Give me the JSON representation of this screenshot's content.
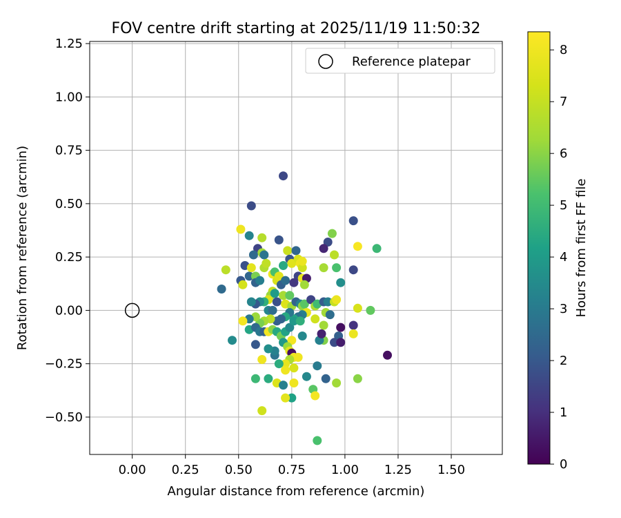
{
  "chart_data": {
    "type": "scatter",
    "title": "FOV centre drift starting at 2025/11/19 11:50:32",
    "xlabel": "Angular distance from reference (arcmin)",
    "ylabel": "Rotation from reference (arcmin)",
    "xlim": [
      -0.2,
      1.74
    ],
    "ylim": [
      -0.675,
      1.26
    ],
    "xticks": [
      "0.00",
      "0.25",
      "0.50",
      "0.75",
      "1.00",
      "1.25",
      "1.50"
    ],
    "yticks": [
      "−0.50",
      "−0.25",
      "0.00",
      "0.25",
      "0.50",
      "0.75",
      "1.00",
      "1.25"
    ],
    "grid": true,
    "legend": {
      "label": "Reference platepar",
      "position": "top-right"
    },
    "reference_point": {
      "x": 0.0,
      "y": 0.0
    },
    "colorbar": {
      "label": "Hours from first FF file",
      "range": [
        0,
        8.35
      ],
      "ticks": [
        "0",
        "1",
        "2",
        "3",
        "4",
        "5",
        "6",
        "7",
        "8"
      ],
      "colormap": "viridis"
    },
    "points": [
      [
        0.71,
        0.63,
        1.6
      ],
      [
        0.56,
        0.49,
        1.7
      ],
      [
        1.04,
        0.42,
        1.8
      ],
      [
        0.51,
        0.38,
        8.0
      ],
      [
        0.61,
        0.34,
        6.7
      ],
      [
        0.55,
        0.35,
        3.3
      ],
      [
        0.69,
        0.33,
        1.9
      ],
      [
        0.59,
        0.29,
        1.5
      ],
      [
        0.61,
        0.27,
        6.3
      ],
      [
        0.62,
        0.26,
        2.8
      ],
      [
        0.57,
        0.26,
        2.5
      ],
      [
        0.53,
        0.21,
        1.8
      ],
      [
        0.44,
        0.19,
        6.8
      ],
      [
        0.42,
        0.1,
        2.5
      ],
      [
        0.51,
        0.14,
        2.0
      ],
      [
        0.52,
        0.12,
        7.3
      ],
      [
        0.55,
        0.16,
        2.4
      ],
      [
        0.56,
        0.2,
        7.7
      ],
      [
        0.58,
        0.16,
        5.8
      ],
      [
        0.58,
        0.13,
        2.3
      ],
      [
        0.6,
        0.14,
        3.1
      ],
      [
        0.62,
        0.2,
        6.6
      ],
      [
        0.63,
        0.22,
        6.9
      ],
      [
        0.66,
        0.17,
        8.0
      ],
      [
        0.67,
        0.18,
        5.2
      ],
      [
        0.68,
        0.14,
        7.4
      ],
      [
        0.69,
        0.16,
        7.6
      ],
      [
        0.7,
        0.12,
        2.2
      ],
      [
        0.72,
        0.14,
        2.6
      ],
      [
        0.73,
        0.28,
        7.1
      ],
      [
        0.74,
        0.24,
        1.9
      ],
      [
        0.75,
        0.22,
        7.6
      ],
      [
        0.77,
        0.28,
        2.4
      ],
      [
        0.78,
        0.24,
        7.4
      ],
      [
        0.79,
        0.22,
        8.0
      ],
      [
        0.8,
        0.2,
        7.2
      ],
      [
        0.78,
        0.16,
        1.5
      ],
      [
        0.8,
        0.15,
        7.9
      ],
      [
        0.82,
        0.15,
        0.6
      ],
      [
        0.76,
        0.13,
        1.2
      ],
      [
        0.81,
        0.12,
        6.3
      ],
      [
        0.71,
        0.21,
        4.4
      ],
      [
        0.66,
        0.09,
        7.0
      ],
      [
        0.65,
        0.07,
        6.2
      ],
      [
        0.67,
        0.08,
        4.0
      ],
      [
        0.71,
        0.07,
        6.4
      ],
      [
        0.74,
        0.07,
        5.5
      ],
      [
        0.64,
        0.05,
        7.5
      ],
      [
        0.62,
        0.04,
        4.6
      ],
      [
        0.6,
        0.04,
        3.5
      ],
      [
        0.58,
        0.03,
        2.0
      ],
      [
        0.56,
        0.04,
        3.3
      ],
      [
        0.64,
        0.0,
        3.3
      ],
      [
        0.66,
        0.0,
        2.6
      ],
      [
        0.68,
        0.04,
        1.8
      ],
      [
        0.72,
        0.03,
        7.5
      ],
      [
        0.75,
        0.02,
        6.3
      ],
      [
        0.77,
        0.04,
        2.3
      ],
      [
        0.79,
        0.03,
        3.2
      ],
      [
        0.8,
        0.02,
        6.1
      ],
      [
        0.81,
        0.03,
        5.4
      ],
      [
        0.84,
        0.05,
        1.5
      ],
      [
        0.86,
        0.02,
        6.5
      ],
      [
        0.87,
        0.03,
        5.0
      ],
      [
        0.9,
        0.04,
        2.1
      ],
      [
        0.92,
        0.04,
        3.1
      ],
      [
        0.95,
        0.04,
        7.0
      ],
      [
        0.96,
        0.05,
        7.9
      ],
      [
        1.06,
        0.01,
        7.4
      ],
      [
        1.12,
        0.0,
        5.5
      ],
      [
        0.91,
        -0.01,
        6.3
      ],
      [
        0.93,
        -0.02,
        2.6
      ],
      [
        0.82,
        -0.01,
        7.8
      ],
      [
        0.8,
        -0.02,
        3.1
      ],
      [
        0.78,
        -0.03,
        2.7
      ],
      [
        0.76,
        -0.04,
        4.3
      ],
      [
        0.74,
        -0.01,
        2.9
      ],
      [
        0.72,
        -0.03,
        4.4
      ],
      [
        0.7,
        -0.04,
        2.3
      ],
      [
        0.68,
        -0.05,
        2.2
      ],
      [
        0.65,
        -0.04,
        6.8
      ],
      [
        0.62,
        -0.05,
        6.4
      ],
      [
        0.6,
        -0.06,
        5.8
      ],
      [
        0.58,
        -0.03,
        6.2
      ],
      [
        0.55,
        -0.04,
        2.9
      ],
      [
        0.52,
        -0.05,
        8.1
      ],
      [
        0.55,
        -0.09,
        4.3
      ],
      [
        0.58,
        -0.08,
        2.5
      ],
      [
        0.6,
        -0.1,
        2.9
      ],
      [
        0.62,
        -0.1,
        2.2
      ],
      [
        0.64,
        -0.1,
        8.1
      ],
      [
        0.66,
        -0.09,
        6.0
      ],
      [
        0.68,
        -0.1,
        4.4
      ],
      [
        0.7,
        -0.12,
        5.7
      ],
      [
        0.72,
        -0.1,
        4.2
      ],
      [
        0.74,
        -0.08,
        3.4
      ],
      [
        0.76,
        -0.05,
        3.9
      ],
      [
        0.79,
        -0.05,
        4.6
      ],
      [
        0.8,
        -0.12,
        3.4
      ],
      [
        0.86,
        -0.04,
        7.2
      ],
      [
        0.9,
        -0.07,
        6.3
      ],
      [
        0.98,
        -0.08,
        0.3
      ],
      [
        1.04,
        -0.07,
        1.1
      ],
      [
        1.04,
        -0.11,
        7.9
      ],
      [
        0.97,
        -0.12,
        2.2
      ],
      [
        0.95,
        -0.15,
        1.7
      ],
      [
        0.9,
        -0.14,
        5.9
      ],
      [
        0.88,
        -0.14,
        3.2
      ],
      [
        0.89,
        -0.11,
        0.7
      ],
      [
        0.98,
        -0.15,
        0.6
      ],
      [
        0.75,
        -0.14,
        8.1
      ],
      [
        0.71,
        -0.15,
        3.9
      ],
      [
        0.73,
        -0.17,
        6.2
      ],
      [
        0.74,
        -0.19,
        7.7
      ],
      [
        0.75,
        -0.2,
        0.3
      ],
      [
        0.76,
        -0.22,
        8.0
      ],
      [
        0.78,
        -0.22,
        8.0
      ],
      [
        0.74,
        -0.23,
        6.5
      ],
      [
        0.72,
        -0.25,
        7.8
      ],
      [
        0.69,
        -0.25,
        4.5
      ],
      [
        0.67,
        -0.21,
        2.8
      ],
      [
        0.67,
        -0.19,
        3.2
      ],
      [
        0.64,
        -0.18,
        3.6
      ],
      [
        0.58,
        -0.16,
        2.0
      ],
      [
        0.47,
        -0.14,
        3.5
      ],
      [
        0.61,
        -0.23,
        8.0
      ],
      [
        0.72,
        -0.28,
        8.0
      ],
      [
        0.76,
        -0.27,
        7.4
      ],
      [
        0.68,
        -0.34,
        7.5
      ],
      [
        0.71,
        -0.35,
        3.2
      ],
      [
        0.64,
        -0.32,
        4.5
      ],
      [
        0.58,
        -0.32,
        4.9
      ],
      [
        0.76,
        -0.34,
        8.0
      ],
      [
        0.82,
        -0.31,
        3.4
      ],
      [
        0.87,
        -0.26,
        3.0
      ],
      [
        0.91,
        -0.32,
        2.3
      ],
      [
        0.96,
        -0.34,
        6.3
      ],
      [
        1.06,
        -0.32,
        6.0
      ],
      [
        0.85,
        -0.37,
        5.4
      ],
      [
        0.86,
        -0.4,
        8.1
      ],
      [
        0.75,
        -0.41,
        4.2
      ],
      [
        0.72,
        -0.41,
        7.7
      ],
      [
        0.61,
        -0.47,
        7.2
      ],
      [
        0.87,
        -0.61,
        5.2
      ],
      [
        1.2,
        -0.21,
        0.3
      ],
      [
        1.15,
        0.29,
        4.9
      ],
      [
        1.06,
        0.3,
        8.2
      ],
      [
        1.04,
        0.19,
        1.6
      ],
      [
        0.98,
        0.13,
        3.6
      ],
      [
        0.96,
        0.2,
        5.2
      ],
      [
        0.95,
        0.26,
        6.8
      ],
      [
        0.94,
        0.36,
        5.9
      ],
      [
        0.92,
        0.32,
        1.7
      ],
      [
        0.9,
        0.29,
        0.8
      ],
      [
        0.9,
        0.2,
        6.4
      ],
      [
        0.8,
        0.23,
        7.9
      ]
    ]
  }
}
